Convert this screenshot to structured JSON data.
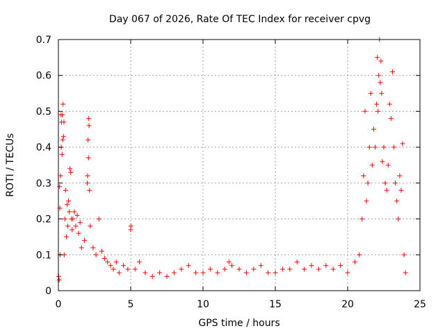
{
  "chart_data": {
    "type": "scatter",
    "title": "Day 067 of 2026, Rate Of TEC Index for receiver cpvg",
    "xlabel": "GPS time / hours",
    "ylabel": "ROTI / TECUs",
    "xlim": [
      0,
      25
    ],
    "ylim": [
      0,
      0.7
    ],
    "x_ticks": [
      "0",
      "5",
      "10",
      "15",
      "20",
      "25"
    ],
    "y_ticks": [
      "0",
      "0.1",
      "0.2",
      "0.3",
      "0.4",
      "0.5",
      "0.6",
      "0.7"
    ],
    "grid": true,
    "marker": "+",
    "color": "#ff0000",
    "series": [
      {
        "points": [
          [
            0.02,
            0.04
          ],
          [
            0.05,
            0.03
          ],
          [
            0.08,
            0.29
          ],
          [
            0.1,
            0.23
          ],
          [
            0.12,
            0.1
          ],
          [
            0.15,
            0.32
          ],
          [
            0.18,
            0.49
          ],
          [
            0.2,
            0.4
          ],
          [
            0.22,
            0.47
          ],
          [
            0.25,
            0.38
          ],
          [
            0.28,
            0.49
          ],
          [
            0.3,
            0.42
          ],
          [
            0.32,
            0.52
          ],
          [
            0.35,
            0.43
          ],
          [
            0.38,
            0.47
          ],
          [
            0.4,
            0.1
          ],
          [
            0.45,
            0.2
          ],
          [
            0.5,
            0.28
          ],
          [
            0.55,
            0.15
          ],
          [
            0.6,
            0.24
          ],
          [
            0.65,
            0.18
          ],
          [
            0.7,
            0.25
          ],
          [
            0.75,
            0.22
          ],
          [
            0.8,
            0.34
          ],
          [
            0.85,
            0.33
          ],
          [
            0.9,
            0.2
          ],
          [
            0.95,
            0.17
          ],
          [
            1.0,
            0.2
          ],
          [
            1.1,
            0.22
          ],
          [
            1.2,
            0.18
          ],
          [
            1.3,
            0.21
          ],
          [
            1.4,
            0.16
          ],
          [
            1.5,
            0.19
          ],
          [
            1.6,
            0.12
          ],
          [
            1.8,
            0.14
          ],
          [
            2.0,
            0.3
          ],
          [
            2.02,
            0.32
          ],
          [
            2.05,
            0.42
          ],
          [
            2.08,
            0.37
          ],
          [
            2.1,
            0.48
          ],
          [
            2.12,
            0.46
          ],
          [
            2.15,
            0.28
          ],
          [
            2.2,
            0.18
          ],
          [
            2.4,
            0.12
          ],
          [
            2.6,
            0.1
          ],
          [
            2.8,
            0.2
          ],
          [
            3.0,
            0.11
          ],
          [
            3.2,
            0.09
          ],
          [
            3.4,
            0.08
          ],
          [
            3.6,
            0.07
          ],
          [
            3.8,
            0.06
          ],
          [
            4.0,
            0.08
          ],
          [
            4.2,
            0.05
          ],
          [
            4.5,
            0.07
          ],
          [
            4.8,
            0.06
          ],
          [
            5.0,
            0.17
          ],
          [
            5.02,
            0.18
          ],
          [
            5.3,
            0.06
          ],
          [
            5.6,
            0.08
          ],
          [
            6.0,
            0.05
          ],
          [
            6.5,
            0.04
          ],
          [
            7.0,
            0.05
          ],
          [
            7.5,
            0.04
          ],
          [
            8.0,
            0.05
          ],
          [
            8.5,
            0.06
          ],
          [
            9.0,
            0.07
          ],
          [
            9.5,
            0.05
          ],
          [
            10.0,
            0.05
          ],
          [
            10.5,
            0.06
          ],
          [
            11.0,
            0.05
          ],
          [
            11.5,
            0.06
          ],
          [
            11.8,
            0.08
          ],
          [
            12.0,
            0.07
          ],
          [
            12.5,
            0.06
          ],
          [
            13.0,
            0.05
          ],
          [
            13.5,
            0.06
          ],
          [
            14.0,
            0.07
          ],
          [
            14.5,
            0.05
          ],
          [
            15.0,
            0.05
          ],
          [
            15.5,
            0.06
          ],
          [
            16.0,
            0.06
          ],
          [
            16.5,
            0.08
          ],
          [
            17.0,
            0.06
          ],
          [
            17.5,
            0.07
          ],
          [
            18.0,
            0.06
          ],
          [
            18.5,
            0.07
          ],
          [
            19.0,
            0.06
          ],
          [
            19.5,
            0.07
          ],
          [
            20.0,
            0.05
          ],
          [
            20.5,
            0.08
          ],
          [
            20.8,
            0.1
          ],
          [
            21.0,
            0.2
          ],
          [
            21.1,
            0.32
          ],
          [
            21.2,
            0.5
          ],
          [
            21.3,
            0.25
          ],
          [
            21.4,
            0.3
          ],
          [
            21.5,
            0.4
          ],
          [
            21.6,
            0.55
          ],
          [
            21.7,
            0.35
          ],
          [
            21.8,
            0.45
          ],
          [
            21.9,
            0.4
          ],
          [
            22.0,
            0.52
          ],
          [
            22.05,
            0.65
          ],
          [
            22.1,
            0.5
          ],
          [
            22.15,
            0.6
          ],
          [
            22.2,
            0.7
          ],
          [
            22.25,
            0.58
          ],
          [
            22.3,
            0.64
          ],
          [
            22.35,
            0.55
          ],
          [
            22.4,
            0.36
          ],
          [
            22.5,
            0.4
          ],
          [
            22.6,
            0.3
          ],
          [
            22.7,
            0.28
          ],
          [
            22.8,
            0.35
          ],
          [
            22.9,
            0.52
          ],
          [
            23.0,
            0.48
          ],
          [
            23.1,
            0.61
          ],
          [
            23.2,
            0.4
          ],
          [
            23.3,
            0.3
          ],
          [
            23.4,
            0.25
          ],
          [
            23.5,
            0.2
          ],
          [
            23.6,
            0.32
          ],
          [
            23.7,
            0.28
          ],
          [
            23.8,
            0.41
          ],
          [
            23.9,
            0.1
          ],
          [
            24.0,
            0.05
          ]
        ]
      }
    ]
  }
}
